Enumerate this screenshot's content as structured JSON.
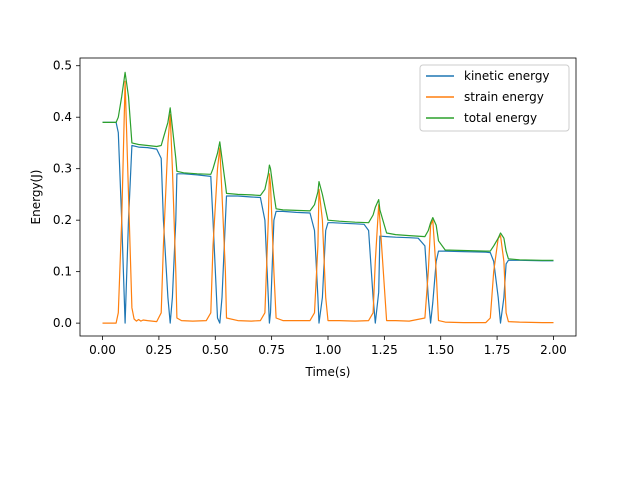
{
  "chart_data": {
    "type": "line",
    "title": "",
    "xlabel": "Time(s)",
    "ylabel": "Energy(J)",
    "xlim": [
      -0.1,
      2.1
    ],
    "ylim": [
      -0.025,
      0.515
    ],
    "xticks": [
      0.0,
      0.25,
      0.5,
      0.75,
      1.0,
      1.25,
      1.5,
      1.75,
      2.0
    ],
    "xtick_labels": [
      "0.00",
      "0.25",
      "0.50",
      "0.75",
      "1.00",
      "1.25",
      "1.50",
      "1.75",
      "2.00"
    ],
    "yticks": [
      0.0,
      0.1,
      0.2,
      0.3,
      0.4,
      0.5
    ],
    "ytick_labels": [
      "0.0",
      "0.1",
      "0.2",
      "0.3",
      "0.4",
      "0.5"
    ],
    "grid": false,
    "legend_position": "top-right",
    "series": [
      {
        "name": "kinetic energy",
        "color": "#1f77b4",
        "x": [
          0.0,
          0.06,
          0.07,
          0.085,
          0.1,
          0.115,
          0.13,
          0.16,
          0.2,
          0.24,
          0.26,
          0.27,
          0.29,
          0.3,
          0.31,
          0.325,
          0.33,
          0.36,
          0.42,
          0.48,
          0.49,
          0.51,
          0.52,
          0.53,
          0.545,
          0.55,
          0.6,
          0.66,
          0.7,
          0.72,
          0.735,
          0.74,
          0.745,
          0.76,
          0.77,
          0.8,
          0.86,
          0.92,
          0.94,
          0.955,
          0.96,
          0.975,
          0.99,
          1.0,
          1.02,
          1.07,
          1.12,
          1.16,
          1.18,
          1.2,
          1.21,
          1.225,
          1.23,
          1.26,
          1.3,
          1.36,
          1.4,
          1.43,
          1.445,
          1.455,
          1.465,
          1.48,
          1.49,
          1.52,
          1.6,
          1.7,
          1.72,
          1.735,
          1.755,
          1.765,
          1.78,
          1.79,
          1.8,
          1.85,
          1.95,
          2.0
        ],
        "y": [
          0.39,
          0.39,
          0.37,
          0.2,
          0.0,
          0.2,
          0.345,
          0.342,
          0.341,
          0.338,
          0.32,
          0.2,
          0.05,
          0.0,
          0.05,
          0.2,
          0.29,
          0.29,
          0.288,
          0.285,
          0.2,
          0.01,
          0.0,
          0.05,
          0.2,
          0.247,
          0.247,
          0.245,
          0.244,
          0.2,
          0.05,
          0.0,
          0.02,
          0.2,
          0.217,
          0.217,
          0.215,
          0.214,
          0.18,
          0.05,
          0.0,
          0.05,
          0.18,
          0.195,
          0.195,
          0.194,
          0.193,
          0.192,
          0.18,
          0.05,
          0.0,
          0.06,
          0.169,
          0.168,
          0.167,
          0.166,
          0.165,
          0.15,
          0.05,
          0.0,
          0.04,
          0.12,
          0.14,
          0.14,
          0.139,
          0.138,
          0.137,
          0.12,
          0.05,
          0.0,
          0.05,
          0.115,
          0.122,
          0.122,
          0.121,
          0.121
        ]
      },
      {
        "name": "strain energy",
        "color": "#ff7f0e",
        "x": [
          0.0,
          0.06,
          0.07,
          0.085,
          0.1,
          0.115,
          0.13,
          0.14,
          0.15,
          0.16,
          0.17,
          0.18,
          0.2,
          0.24,
          0.26,
          0.27,
          0.29,
          0.3,
          0.31,
          0.325,
          0.33,
          0.35,
          0.4,
          0.46,
          0.48,
          0.49,
          0.51,
          0.52,
          0.53,
          0.545,
          0.55,
          0.6,
          0.66,
          0.7,
          0.72,
          0.735,
          0.74,
          0.745,
          0.76,
          0.77,
          0.8,
          0.86,
          0.92,
          0.94,
          0.955,
          0.96,
          0.975,
          0.99,
          1.0,
          1.05,
          1.12,
          1.18,
          1.2,
          1.21,
          1.225,
          1.23,
          1.26,
          1.3,
          1.36,
          1.43,
          1.445,
          1.455,
          1.465,
          1.48,
          1.49,
          1.52,
          1.6,
          1.7,
          1.72,
          1.735,
          1.755,
          1.765,
          1.78,
          1.79,
          1.8,
          1.85,
          1.95,
          2.0
        ],
        "y": [
          0.0,
          0.0,
          0.02,
          0.2,
          0.47,
          0.25,
          0.03,
          0.008,
          0.004,
          0.007,
          0.004,
          0.006,
          0.005,
          0.003,
          0.02,
          0.15,
          0.35,
          0.405,
          0.3,
          0.1,
          0.01,
          0.005,
          0.004,
          0.005,
          0.02,
          0.15,
          0.3,
          0.34,
          0.25,
          0.1,
          0.01,
          0.005,
          0.004,
          0.005,
          0.02,
          0.2,
          0.29,
          0.27,
          0.1,
          0.01,
          0.005,
          0.005,
          0.005,
          0.02,
          0.15,
          0.26,
          0.2,
          0.05,
          0.005,
          0.005,
          0.004,
          0.005,
          0.02,
          0.12,
          0.23,
          0.2,
          0.005,
          0.005,
          0.004,
          0.01,
          0.1,
          0.19,
          0.2,
          0.1,
          0.005,
          0.002,
          0.001,
          0.001,
          0.01,
          0.1,
          0.165,
          0.17,
          0.12,
          0.02,
          0.003,
          0.002,
          0.001,
          0.001
        ]
      },
      {
        "name": "total energy",
        "color": "#2ca02c",
        "x": [
          0.0,
          0.06,
          0.07,
          0.085,
          0.1,
          0.115,
          0.13,
          0.16,
          0.2,
          0.24,
          0.26,
          0.27,
          0.29,
          0.3,
          0.31,
          0.325,
          0.33,
          0.36,
          0.42,
          0.48,
          0.49,
          0.51,
          0.52,
          0.53,
          0.545,
          0.55,
          0.6,
          0.66,
          0.7,
          0.72,
          0.735,
          0.74,
          0.745,
          0.76,
          0.77,
          0.8,
          0.86,
          0.92,
          0.94,
          0.955,
          0.96,
          0.975,
          0.99,
          1.0,
          1.05,
          1.12,
          1.18,
          1.2,
          1.21,
          1.225,
          1.23,
          1.26,
          1.3,
          1.36,
          1.43,
          1.445,
          1.455,
          1.465,
          1.48,
          1.49,
          1.52,
          1.6,
          1.7,
          1.72,
          1.735,
          1.755,
          1.765,
          1.78,
          1.79,
          1.8,
          1.85,
          1.95,
          2.0
        ],
        "y": [
          0.39,
          0.39,
          0.4,
          0.44,
          0.487,
          0.44,
          0.35,
          0.347,
          0.345,
          0.343,
          0.345,
          0.36,
          0.39,
          0.418,
          0.38,
          0.32,
          0.295,
          0.292,
          0.29,
          0.289,
          0.3,
          0.33,
          0.352,
          0.32,
          0.27,
          0.252,
          0.25,
          0.249,
          0.248,
          0.26,
          0.29,
          0.307,
          0.3,
          0.25,
          0.222,
          0.22,
          0.219,
          0.218,
          0.23,
          0.255,
          0.275,
          0.25,
          0.22,
          0.2,
          0.198,
          0.196,
          0.195,
          0.21,
          0.225,
          0.24,
          0.22,
          0.175,
          0.172,
          0.17,
          0.168,
          0.18,
          0.195,
          0.205,
          0.19,
          0.16,
          0.142,
          0.141,
          0.14,
          0.14,
          0.15,
          0.165,
          0.175,
          0.165,
          0.14,
          0.125,
          0.123,
          0.122,
          0.122
        ]
      }
    ]
  }
}
